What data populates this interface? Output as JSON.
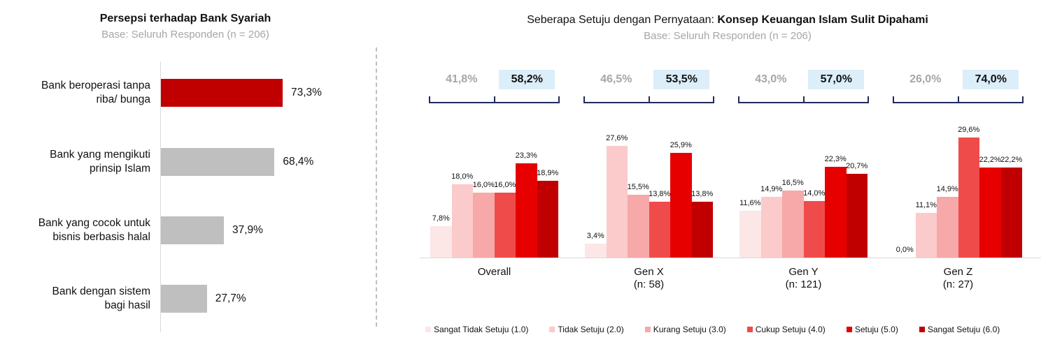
{
  "chart_data": [
    {
      "type": "bar",
      "orientation": "horizontal",
      "title": "Persepsi terhadap Bank Syariah",
      "subtitle": "Base: Seluruh Responden (n = 206)",
      "categories": [
        "Bank beroperasi tanpa riba/ bunga",
        "Bank yang mengikuti prinsip Islam",
        "Bank yang cocok untuk bisnis berbasis halal",
        "Bank dengan sistem bagi hasil"
      ],
      "category_lines": [
        [
          "Bank beroperasi tanpa",
          "riba/ bunga"
        ],
        [
          "Bank yang mengikuti",
          "prinsip Islam"
        ],
        [
          "Bank yang cocok untuk",
          "bisnis berbasis halal"
        ],
        [
          "Bank dengan sistem",
          "bagi hasil"
        ]
      ],
      "values": [
        73.3,
        68.4,
        37.9,
        27.7
      ],
      "value_labels": [
        "73,3%",
        "68,4%",
        "37,9%",
        "27,7%"
      ],
      "bar_colors": [
        "#c00000",
        "#bfbfbf",
        "#bfbfbf",
        "#bfbfbf"
      ],
      "xlim": [
        0,
        100
      ],
      "grid": false
    },
    {
      "type": "bar",
      "title_prefix": "Seberapa Setuju dengan Pernyataan: ",
      "title_bold": "Konsep Keuangan Islam Sulit Dipahami",
      "subtitle": "Base: Seluruh Responden (n = 206)",
      "groups": [
        {
          "label": "Overall",
          "sublabel": ""
        },
        {
          "label": "Gen X",
          "sublabel": "(n: 58)"
        },
        {
          "label": "Gen Y",
          "sublabel": "(n: 121)"
        },
        {
          "label": "Gen Z",
          "sublabel": "(n: 27)"
        }
      ],
      "series": [
        {
          "name": "Sangat Tidak Setuju (1.0)",
          "color": "#fde6e6",
          "values": [
            7.8,
            3.4,
            11.6,
            0.0
          ],
          "labels": [
            "7,8%",
            "3,4%",
            "11,6%",
            "0,0%"
          ]
        },
        {
          "name": "Tidak Setuju (2.0)",
          "color": "#fbcaca",
          "values": [
            18.0,
            27.6,
            14.9,
            11.1
          ],
          "labels": [
            "18,0%",
            "27,6%",
            "14,9%",
            "11,1%"
          ]
        },
        {
          "name": "Kurang Setuju (3.0)",
          "color": "#f7a8a8",
          "values": [
            16.0,
            15.5,
            16.5,
            14.9
          ],
          "labels": [
            "16,0%",
            "15,5%",
            "16,5%",
            "14,9%"
          ]
        },
        {
          "name": "Cukup Setuju (4.0)",
          "color": "#f04b4b",
          "values": [
            16.0,
            13.8,
            14.0,
            29.6
          ],
          "labels": [
            "16,0%",
            "13,8%",
            "14,0%",
            "29,6%"
          ]
        },
        {
          "name": "Setuju (5.0)",
          "color": "#e60000",
          "values": [
            23.3,
            25.9,
            22.3,
            22.2
          ],
          "labels": [
            "23,3%",
            "25,9%",
            "22,3%",
            "22,2%"
          ]
        },
        {
          "name": "Sangat Setuju (6.0)",
          "color": "#c00000",
          "values": [
            18.9,
            13.8,
            20.7,
            22.2
          ],
          "labels": [
            "18,9%",
            "13,8%",
            "20,7%",
            "22,2%"
          ]
        }
      ],
      "summary": [
        {
          "disagree": "41,8%",
          "agree": "58,2%"
        },
        {
          "disagree": "46,5%",
          "agree": "53,5%"
        },
        {
          "disagree": "43,0%",
          "agree": "57,0%"
        },
        {
          "disagree": "26,0%",
          "agree": "74,0%"
        }
      ],
      "ylim": [
        0,
        30
      ],
      "grid": false,
      "legend_position": "bottom"
    }
  ]
}
